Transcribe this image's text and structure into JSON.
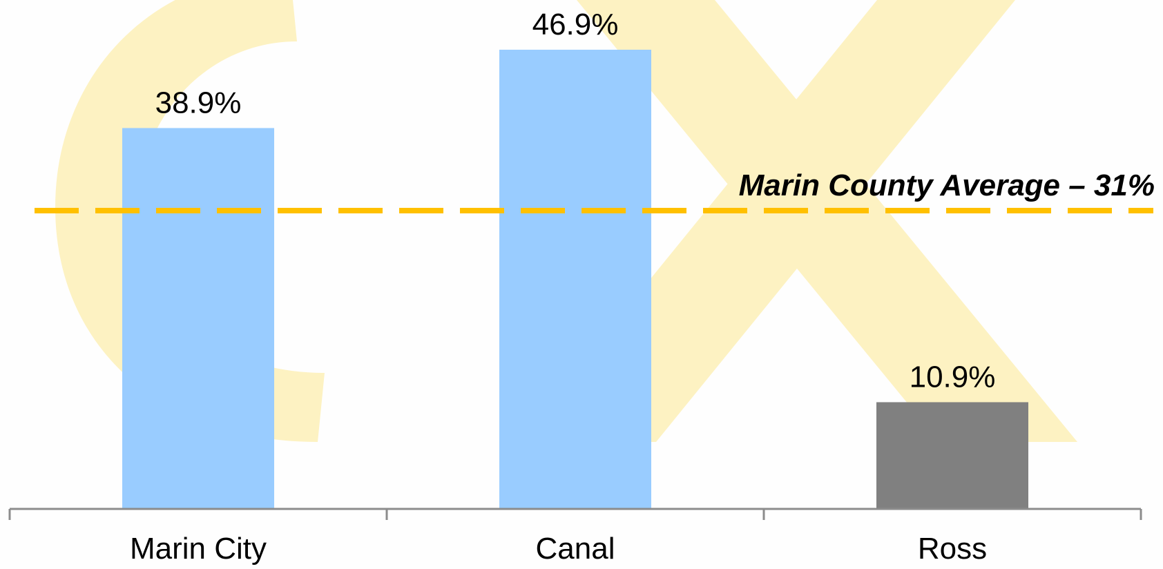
{
  "chart_data": {
    "type": "bar",
    "categories": [
      "Marin City",
      "Canal",
      "Ross"
    ],
    "values": [
      38.9,
      46.9,
      10.9
    ],
    "value_labels": [
      "38.9%",
      "46.9%",
      "10.9%"
    ],
    "bar_colors": [
      "#99ccff",
      "#99ccff",
      "#808080"
    ],
    "ylim": [
      0,
      50
    ],
    "grid": false,
    "reference_line": {
      "value": 31,
      "label": "Marin County Average – 31%",
      "color": "#ffc000",
      "style": "dashed"
    }
  },
  "watermark": {
    "letters": "CX",
    "color": "#fdf2c2"
  },
  "axis_color": "#8c8c8c"
}
